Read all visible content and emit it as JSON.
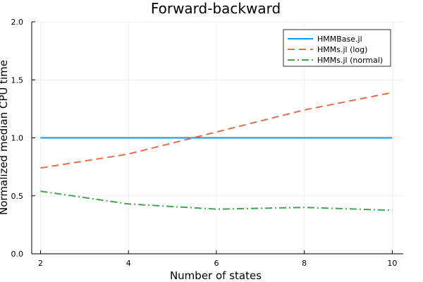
{
  "chart_data": {
    "type": "line",
    "title": "Forward-backward",
    "xlabel": "Number of states",
    "ylabel": "Normalized median CPU time",
    "xlim": [
      1.8,
      10.25
    ],
    "ylim": [
      0.0,
      2.0
    ],
    "xticks": [
      2,
      4,
      6,
      8,
      10
    ],
    "yticks": [
      0.0,
      0.5,
      1.0,
      1.5,
      2.0
    ],
    "ytick_labels": [
      "0.0",
      "0.5",
      "1.0",
      "1.5",
      "2.0"
    ],
    "x": [
      2,
      4,
      6,
      8,
      10
    ],
    "grid": true,
    "legend_position": "top-right",
    "series": [
      {
        "name": "HMMBase.jl",
        "values": [
          1.0,
          1.0,
          1.0,
          1.0,
          1.0
        ],
        "color": "#009AFA",
        "style": "solid"
      },
      {
        "name": "HMMs.jl (log)",
        "values": [
          0.74,
          0.86,
          1.05,
          1.24,
          1.39
        ],
        "color": "#E36F47",
        "style": "dash"
      },
      {
        "name": "HMMs.jl (normal)",
        "values": [
          0.54,
          0.43,
          0.385,
          0.4,
          0.375
        ],
        "color": "#3EA44E",
        "style": "dashdot"
      }
    ]
  }
}
